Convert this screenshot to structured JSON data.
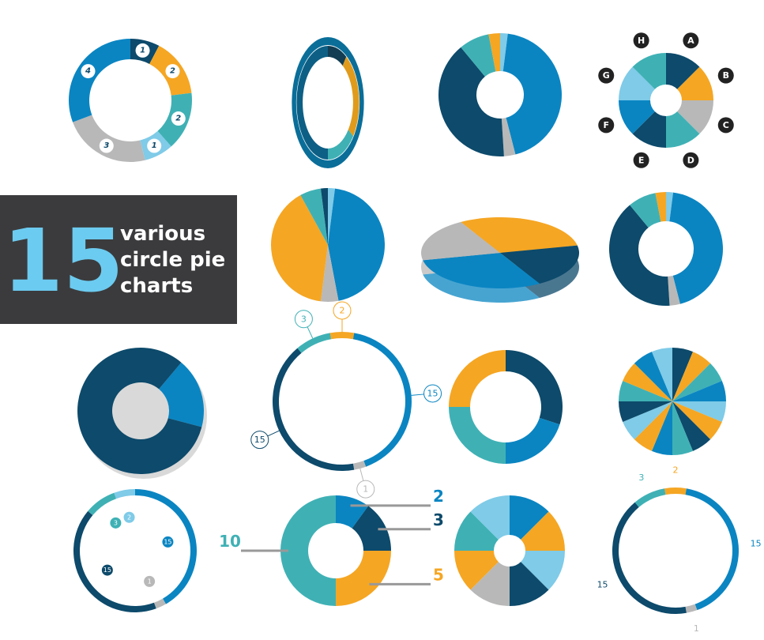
{
  "banner": {
    "number": "15",
    "lines": [
      "various",
      "circle pie",
      "charts"
    ]
  },
  "charts": [
    {
      "type": "donut",
      "segments": [
        {
          "value": 1,
          "color": "#0d4a6b"
        },
        {
          "value": 2,
          "color": "#f5a623"
        },
        {
          "value": 2,
          "color": "#3fb1b5"
        },
        {
          "value": 1,
          "color": "#7fcbe8"
        },
        {
          "value": 3,
          "color": "#b8b8b8"
        },
        {
          "value": 4,
          "color": "#0a85c2"
        }
      ]
    },
    {
      "type": "ring3d",
      "segments": [
        {
          "value": 10,
          "color": "#123d52"
        },
        {
          "value": 25,
          "color": "#e09b1c"
        },
        {
          "value": 15,
          "color": "#3fb1b5"
        },
        {
          "value": 50,
          "color": "#0d5f85"
        }
      ]
    },
    {
      "type": "donut",
      "segments": [
        {
          "value": 2,
          "color": "#7fcbe8"
        },
        {
          "value": 44,
          "color": "#0a85c2"
        },
        {
          "value": 3,
          "color": "#b8b8b8"
        },
        {
          "value": 40,
          "color": "#0d4a6b"
        },
        {
          "value": 8,
          "color": "#3fb1b5"
        },
        {
          "value": 3,
          "color": "#f5a623"
        }
      ]
    },
    {
      "type": "donut",
      "segments": [
        {
          "value": 1,
          "color": "#0d4a6b",
          "label": "A"
        },
        {
          "value": 1,
          "color": "#f5a623",
          "label": "B"
        },
        {
          "value": 1,
          "color": "#b8b8b8",
          "label": "C"
        },
        {
          "value": 1,
          "color": "#3fb1b5",
          "label": "D"
        },
        {
          "value": 1,
          "color": "#0d4a6b",
          "label": "E"
        },
        {
          "value": 1,
          "color": "#0a85c2",
          "label": "F"
        },
        {
          "value": 1,
          "color": "#7fcbe8",
          "label": "G"
        },
        {
          "value": 1,
          "color": "#3fb1b5",
          "label": "H"
        }
      ]
    },
    {
      "type": "pie",
      "segments": [
        {
          "value": 2,
          "color": "#7fcbe8"
        },
        {
          "value": 45,
          "color": "#0a85c2"
        },
        {
          "value": 5,
          "color": "#b8b8b8"
        },
        {
          "value": 40,
          "color": "#f5a623"
        },
        {
          "value": 6,
          "color": "#3fb1b5"
        },
        {
          "value": 2,
          "color": "#0d4a6b"
        }
      ]
    },
    {
      "type": "pie3d",
      "segments": [
        {
          "value": 30,
          "color": "#f5a623"
        },
        {
          "value": 20,
          "color": "#0d4a6b"
        },
        {
          "value": 30,
          "color": "#0a85c2"
        },
        {
          "value": 20,
          "color": "#b8b8b8"
        }
      ]
    },
    {
      "type": "donut",
      "segments": [
        {
          "value": 2,
          "color": "#7fcbe8"
        },
        {
          "value": 44,
          "color": "#0a85c2"
        },
        {
          "value": 3,
          "color": "#b8b8b8"
        },
        {
          "value": 40,
          "color": "#0d4a6b"
        },
        {
          "value": 8,
          "color": "#3fb1b5"
        },
        {
          "value": 3,
          "color": "#f5a623"
        }
      ]
    },
    {
      "type": "donut",
      "segments": [
        {
          "value": 18,
          "color": "#0a85c2"
        },
        {
          "value": 82,
          "color": "#0d4a6b"
        }
      ]
    },
    {
      "type": "ring",
      "segments": [
        {
          "value": 2,
          "color": "#f5a623"
        },
        {
          "value": 15,
          "color": "#0a85c2"
        },
        {
          "value": 1,
          "color": "#b8b8b8"
        },
        {
          "value": 15,
          "color": "#0d4a6b"
        },
        {
          "value": 3,
          "color": "#3fb1b5"
        }
      ]
    },
    {
      "type": "donut",
      "segments": [
        {
          "value": 30,
          "color": "#0d4a6b"
        },
        {
          "value": 20,
          "color": "#0a85c2"
        },
        {
          "value": 25,
          "color": "#3fb1b5"
        },
        {
          "value": 25,
          "color": "#f5a623"
        }
      ]
    },
    {
      "type": "pie",
      "segments": [
        {
          "value": 1,
          "color": "#0d4a6b"
        },
        {
          "value": 1,
          "color": "#f5a623"
        },
        {
          "value": 1,
          "color": "#3fb1b5"
        },
        {
          "value": 1,
          "color": "#0a85c2"
        },
        {
          "value": 1,
          "color": "#7fcbe8"
        },
        {
          "value": 1,
          "color": "#f5a623"
        },
        {
          "value": 1,
          "color": "#0d4a6b"
        },
        {
          "value": 1,
          "color": "#3fb1b5"
        },
        {
          "value": 1,
          "color": "#0a85c2"
        },
        {
          "value": 1,
          "color": "#f5a623"
        },
        {
          "value": 1,
          "color": "#7fcbe8"
        },
        {
          "value": 1,
          "color": "#0d4a6b"
        },
        {
          "value": 1,
          "color": "#3fb1b5"
        },
        {
          "value": 1,
          "color": "#f5a623"
        },
        {
          "value": 1,
          "color": "#0a85c2"
        },
        {
          "value": 1,
          "color": "#7fcbe8"
        }
      ]
    },
    {
      "type": "ring",
      "segments": [
        {
          "value": 2,
          "color": "#7fcbe8"
        },
        {
          "value": 15,
          "color": "#0a85c2"
        },
        {
          "value": 1,
          "color": "#b8b8b8"
        },
        {
          "value": 15,
          "color": "#0d4a6b"
        },
        {
          "value": 3,
          "color": "#3fb1b5"
        }
      ]
    },
    {
      "type": "donut",
      "segments": [
        {
          "value": 2,
          "color": "#0a85c2"
        },
        {
          "value": 3,
          "color": "#0d4a6b"
        },
        {
          "value": 5,
          "color": "#f5a623"
        },
        {
          "value": 10,
          "color": "#3fb1b5"
        }
      ]
    },
    {
      "type": "donut",
      "segments": [
        {
          "value": 1,
          "color": "#0a85c2"
        },
        {
          "value": 1,
          "color": "#f5a623"
        },
        {
          "value": 1,
          "color": "#7fcbe8"
        },
        {
          "value": 1,
          "color": "#0d4a6b"
        },
        {
          "value": 1,
          "color": "#b8b8b8"
        },
        {
          "value": 1,
          "color": "#f5a623"
        },
        {
          "value": 1,
          "color": "#3fb1b5"
        },
        {
          "value": 1,
          "color": "#7fcbe8"
        }
      ]
    },
    {
      "type": "ring",
      "segments": [
        {
          "value": 2,
          "color": "#f5a623"
        },
        {
          "value": 15,
          "color": "#0a85c2"
        },
        {
          "value": 1,
          "color": "#b8b8b8"
        },
        {
          "value": 15,
          "color": "#0d4a6b"
        },
        {
          "value": 3,
          "color": "#3fb1b5"
        }
      ]
    }
  ]
}
